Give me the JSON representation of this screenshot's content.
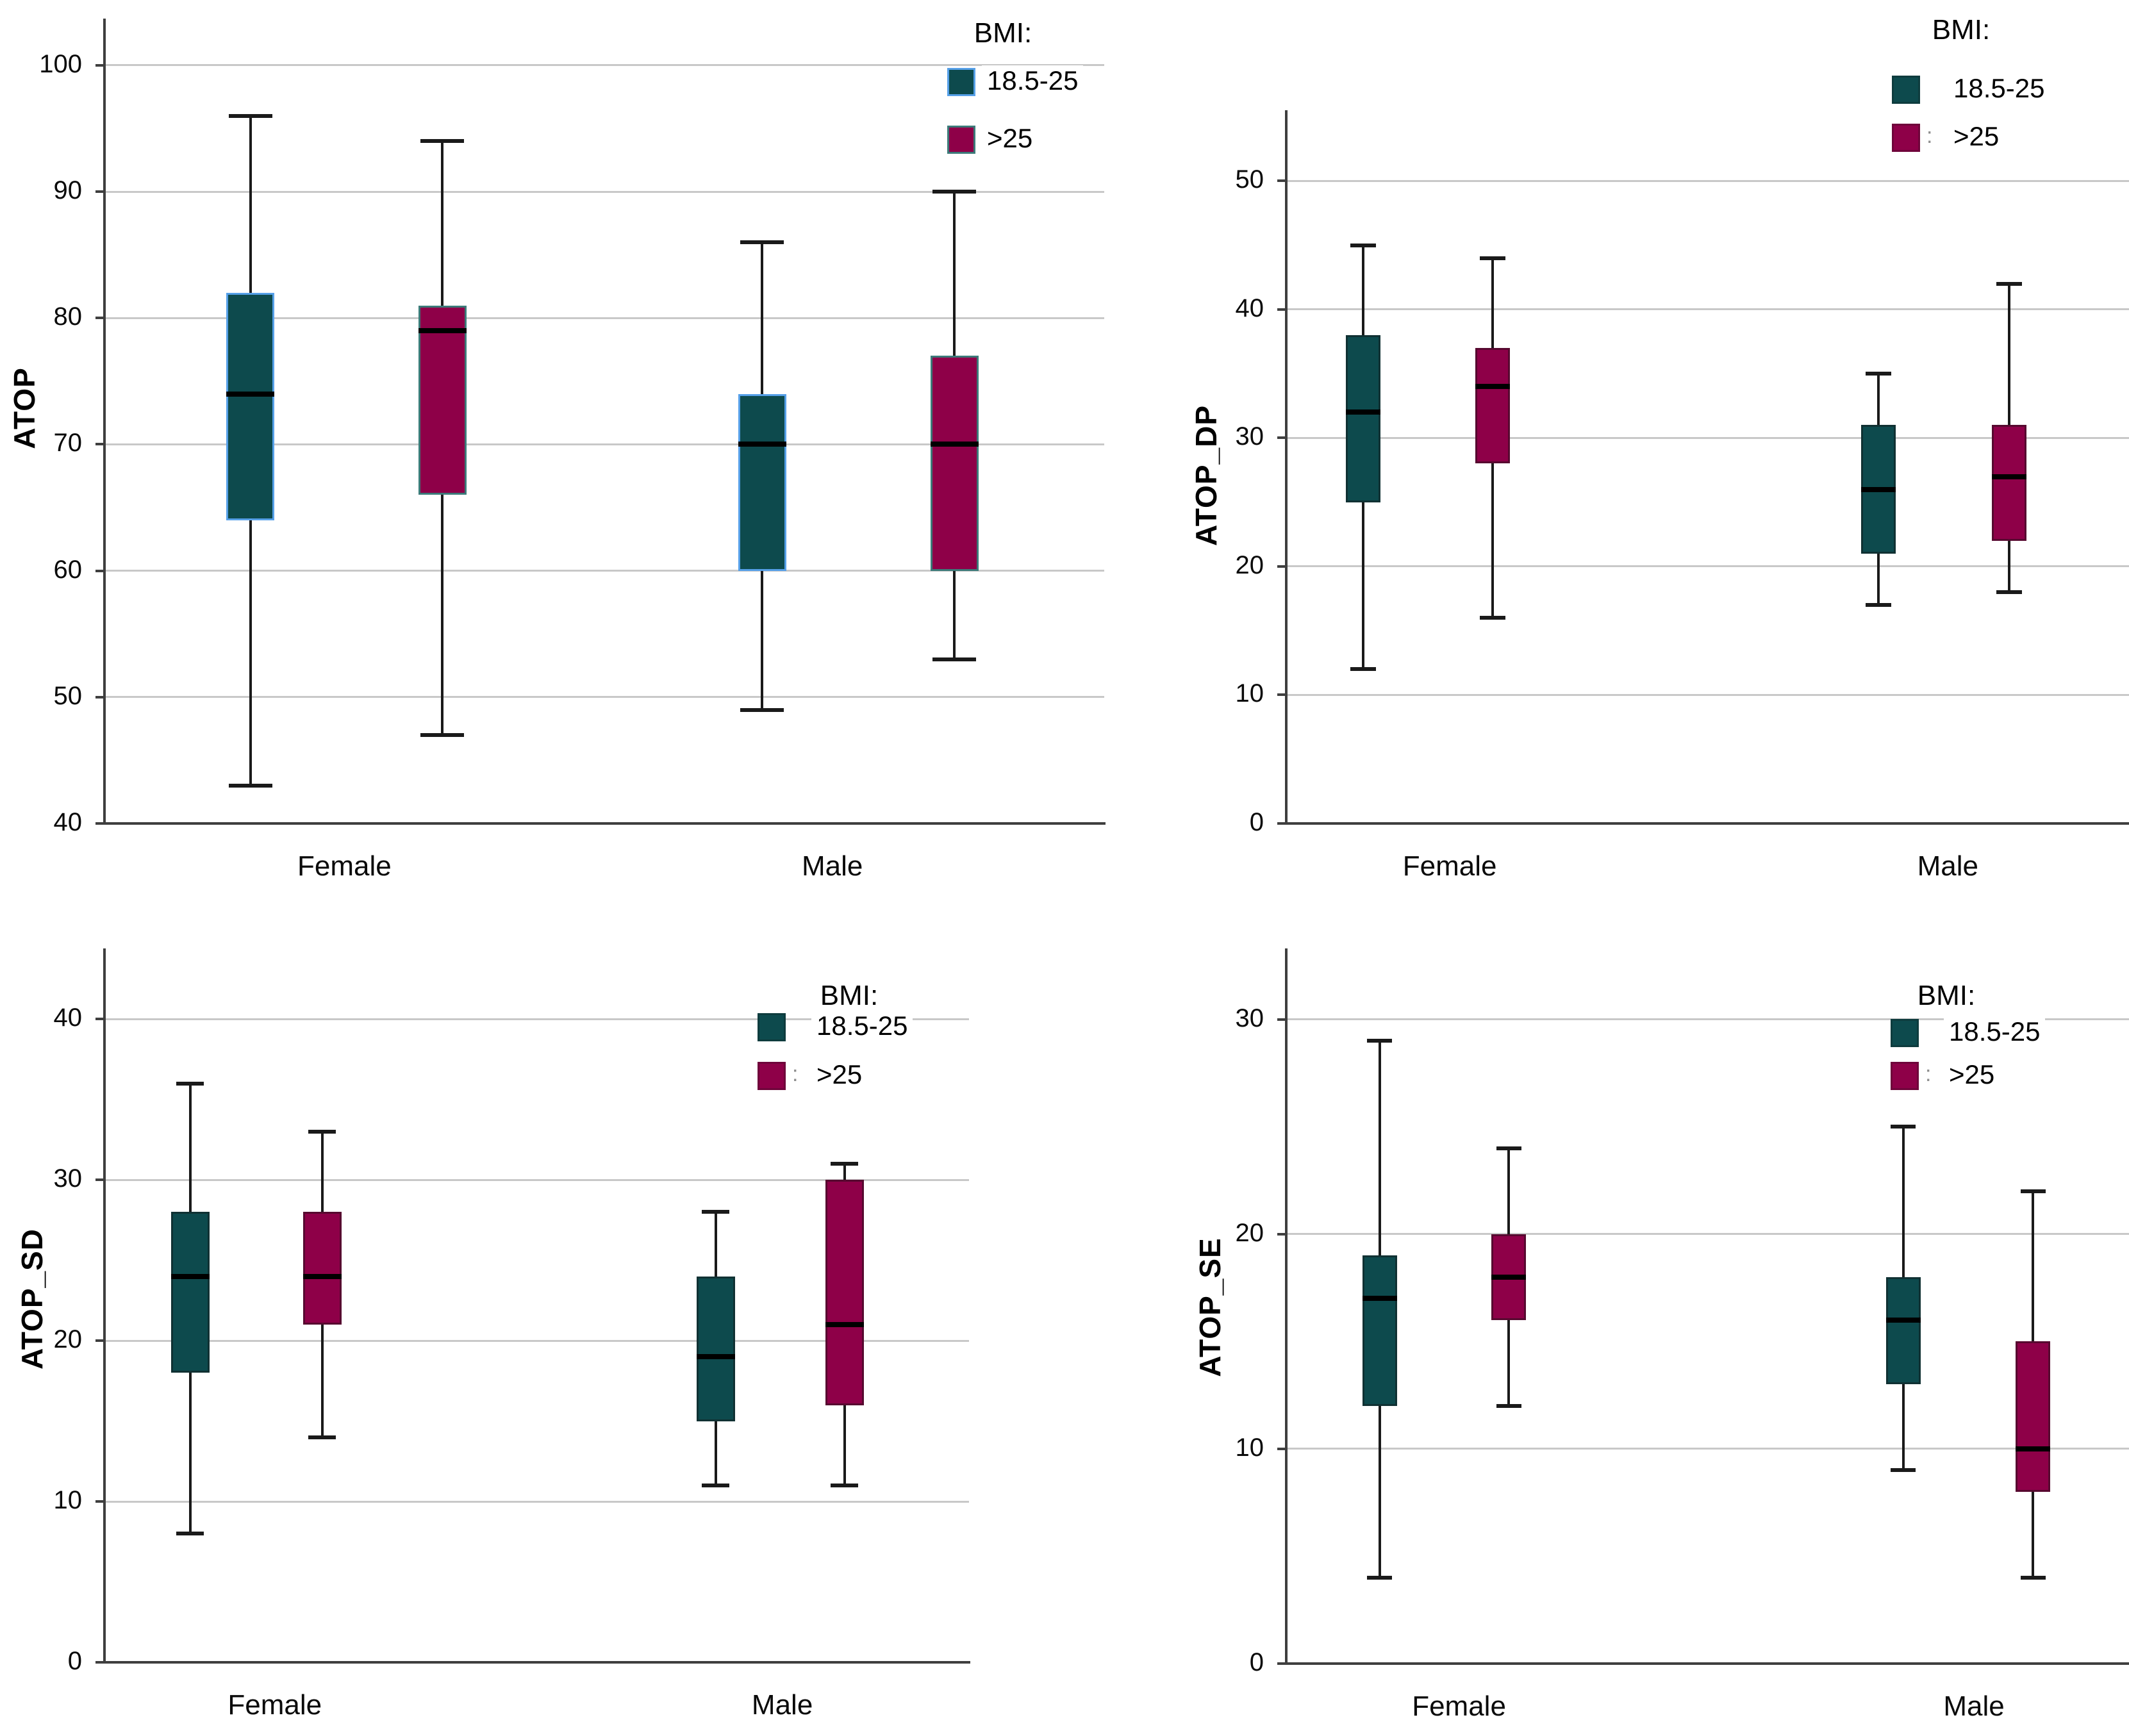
{
  "page": {
    "background": "#ffffff"
  },
  "colors": {
    "teal_fill": "#0d4a4d",
    "maroon_fill": "#8e0048",
    "panel1_teal_border": "#56a0e8",
    "panel1_maroon_border": "#3c7a79",
    "plain_box_border": "rgba(20,20,20,0.45)",
    "gridline": "#c8c8c8",
    "axis": "#3f3f3f",
    "whisker": "#1a1a1a",
    "median": "#000000",
    "text": "#0a0a0a"
  },
  "legend": {
    "title": "BMI:",
    "items": [
      {
        "key": "teal",
        "label": "18.5-25"
      },
      {
        "key": "maroon",
        "label": ">25"
      }
    ]
  },
  "chart_data": [
    {
      "type": "box",
      "ylabel": "ATOP",
      "ylim": [
        40,
        103.7
      ],
      "yticks": [
        40,
        50,
        60,
        70,
        80,
        90,
        100
      ],
      "grid": true,
      "legend_position": "top-right",
      "categories": [
        "Female",
        "Male"
      ],
      "series": [
        {
          "name": "18.5-25",
          "color": "teal",
          "boxes": [
            {
              "category": "Female",
              "whisker_low": 43,
              "q1": 64,
              "median": 74,
              "q3": 82,
              "whisker_high": 96
            },
            {
              "category": "Male",
              "whisker_low": 49,
              "q1": 60,
              "median": 70,
              "q3": 74,
              "whisker_high": 86
            }
          ]
        },
        {
          "name": ">25",
          "color": "maroon",
          "boxes": [
            {
              "category": "Female",
              "whisker_low": 47,
              "q1": 66,
              "median": 79,
              "q3": 81,
              "whisker_high": 94
            },
            {
              "category": "Male",
              "whisker_low": 53,
              "q1": 60,
              "median": 70,
              "q3": 77,
              "whisker_high": 90
            }
          ]
        }
      ]
    },
    {
      "type": "box",
      "ylabel": "ATOP_DP",
      "ylim": [
        0,
        55.5
      ],
      "yticks": [
        0,
        10,
        20,
        30,
        40,
        50
      ],
      "grid": true,
      "legend_position": "top-right",
      "categories": [
        "Female",
        "Male"
      ],
      "series": [
        {
          "name": "18.5-25",
          "color": "teal",
          "boxes": [
            {
              "category": "Female",
              "whisker_low": 12,
              "q1": 25,
              "median": 32,
              "q3": 38,
              "whisker_high": 45
            },
            {
              "category": "Male",
              "whisker_low": 17,
              "q1": 21,
              "median": 26,
              "q3": 31,
              "whisker_high": 35
            }
          ]
        },
        {
          "name": ">25",
          "color": "maroon",
          "boxes": [
            {
              "category": "Female",
              "whisker_low": 16,
              "q1": 28,
              "median": 34,
              "q3": 37,
              "whisker_high": 44
            },
            {
              "category": "Male",
              "whisker_low": 18,
              "q1": 22,
              "median": 27,
              "q3": 31,
              "whisker_high": 42
            }
          ]
        }
      ]
    },
    {
      "type": "box",
      "ylabel": "ATOP_SD",
      "ylim": [
        0,
        44.4
      ],
      "yticks": [
        0,
        10,
        20,
        30,
        40
      ],
      "grid": true,
      "legend_position": "top-right",
      "categories": [
        "Female",
        "Male"
      ],
      "series": [
        {
          "name": "18.5-25",
          "color": "teal",
          "boxes": [
            {
              "category": "Female",
              "whisker_low": 8,
              "q1": 18,
              "median": 24,
              "q3": 28,
              "whisker_high": 36
            },
            {
              "category": "Male",
              "whisker_low": 11,
              "q1": 15,
              "median": 19,
              "q3": 24,
              "whisker_high": 28
            }
          ]
        },
        {
          "name": ">25",
          "color": "maroon",
          "boxes": [
            {
              "category": "Female",
              "whisker_low": 14,
              "q1": 21,
              "median": 24,
              "q3": 28,
              "whisker_high": 33
            },
            {
              "category": "Male",
              "whisker_low": 11,
              "q1": 16,
              "median": 21,
              "q3": 30,
              "whisker_high": 31
            }
          ]
        }
      ]
    },
    {
      "type": "box",
      "ylabel": "ATOP_SE",
      "ylim": [
        0,
        33.3
      ],
      "yticks": [
        0,
        10,
        20,
        30
      ],
      "grid": true,
      "legend_position": "top-right",
      "categories": [
        "Female",
        "Male"
      ],
      "series": [
        {
          "name": "18.5-25",
          "color": "teal",
          "boxes": [
            {
              "category": "Female",
              "whisker_low": 4,
              "q1": 12,
              "median": 17,
              "q3": 19,
              "whisker_high": 29
            },
            {
              "category": "Male",
              "whisker_low": 9,
              "q1": 13,
              "median": 16,
              "q3": 18,
              "whisker_high": 25
            }
          ]
        },
        {
          "name": ">25",
          "color": "maroon",
          "boxes": [
            {
              "category": "Female",
              "whisker_low": 12,
              "q1": 16,
              "median": 18,
              "q3": 20,
              "whisker_high": 24
            },
            {
              "category": "Male",
              "whisker_low": 4,
              "q1": 8,
              "median": 10,
              "q3": 15,
              "whisker_high": 22
            }
          ]
        }
      ]
    }
  ]
}
